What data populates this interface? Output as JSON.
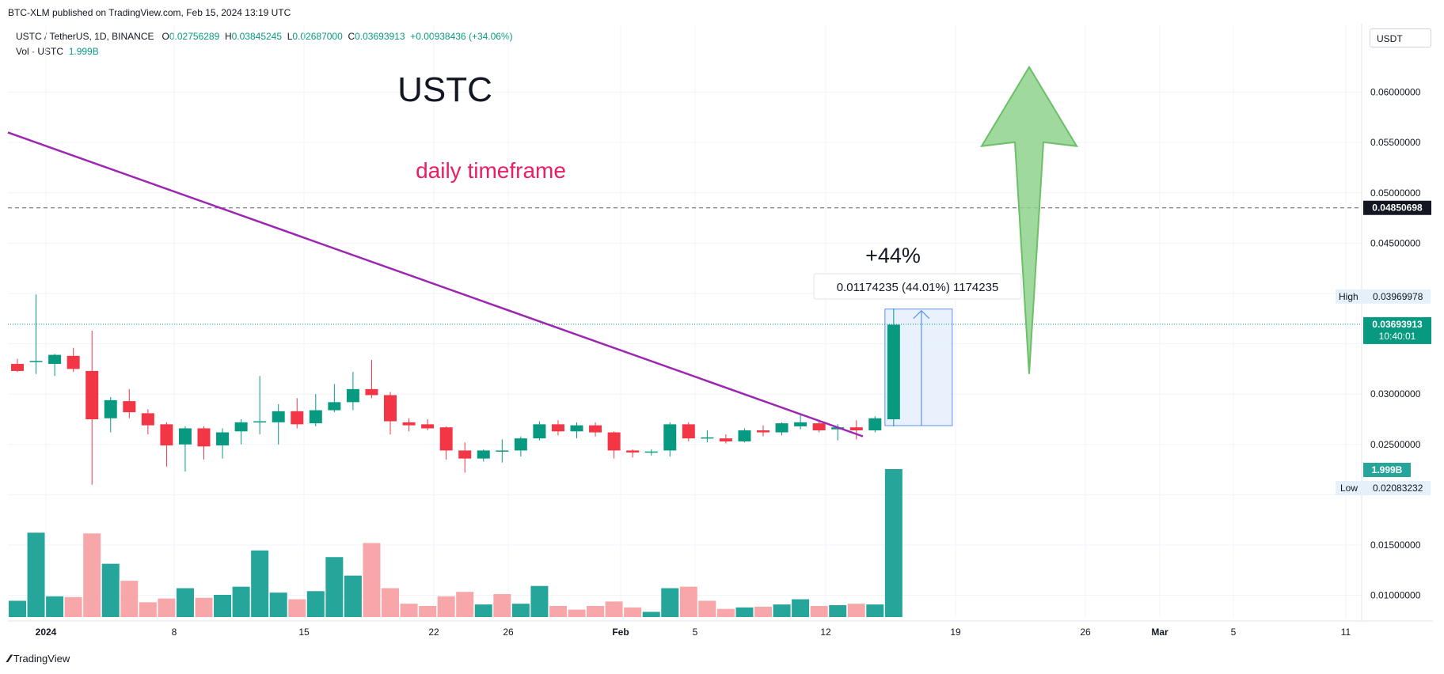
{
  "header": {
    "published_by": "BTC-XLM published on TradingView.com, Feb 15, 2024 13:19 UTC"
  },
  "legend": {
    "symbol": "USTC / TetherUS, 1D, BINANCE",
    "o_label": "O",
    "o_value": "0.02756289",
    "h_label": "H",
    "h_value": "0.03845245",
    "l_label": "L",
    "l_value": "0.02687000",
    "c_label": "C",
    "c_value": "0.03693913",
    "change": "+0.00938436 (+34.06%)",
    "vol_label": "Vol · USTC",
    "vol_value": "1.999B"
  },
  "currency": "USDT",
  "footer": {
    "logo_text": "TradingView"
  },
  "colors": {
    "up": "#089981",
    "down": "#f23645",
    "vol_up": "#26a69a",
    "vol_down": "#f7a7a9",
    "trendline": "#9c27b0",
    "annotation_pink": "#e91e63",
    "arrow_fill": "#8fd28c",
    "arrow_stroke": "#6cbf68",
    "measure_fill": "#e3eefd",
    "measure_stroke": "#5b8ff9"
  },
  "chart_data": {
    "type": "candlestick",
    "x_ticks": [
      "2024",
      "8",
      "15",
      "22",
      "26",
      "Feb",
      "5",
      "12",
      "19",
      "26",
      "Mar",
      "5",
      "11"
    ],
    "y_ticks": [
      "0.06000000",
      "0.05500000",
      "0.05000000",
      "0.04500000",
      "0.03000000",
      "0.02500000",
      "0.01500000",
      "0.01000000"
    ],
    "y_range": [
      0.0095,
      0.0635
    ],
    "candles": [
      {
        "o": 0.033,
        "h": 0.0335,
        "l": 0.0322,
        "c": 0.0323
      },
      {
        "o": 0.0332,
        "h": 0.0399,
        "l": 0.032,
        "c": 0.0333
      },
      {
        "o": 0.033,
        "h": 0.034,
        "l": 0.0318,
        "c": 0.0339
      },
      {
        "o": 0.0338,
        "h": 0.0346,
        "l": 0.0322,
        "c": 0.0325
      },
      {
        "o": 0.0323,
        "h": 0.0363,
        "l": 0.021,
        "c": 0.0275
      },
      {
        "o": 0.0276,
        "h": 0.0297,
        "l": 0.0262,
        "c": 0.0294
      },
      {
        "o": 0.0293,
        "h": 0.0305,
        "l": 0.0276,
        "c": 0.0282
      },
      {
        "o": 0.0281,
        "h": 0.0285,
        "l": 0.026,
        "c": 0.0269
      },
      {
        "o": 0.027,
        "h": 0.0272,
        "l": 0.0228,
        "c": 0.0249
      },
      {
        "o": 0.025,
        "h": 0.0268,
        "l": 0.0223,
        "c": 0.0266
      },
      {
        "o": 0.0266,
        "h": 0.0268,
        "l": 0.0235,
        "c": 0.0248
      },
      {
        "o": 0.0249,
        "h": 0.0266,
        "l": 0.0236,
        "c": 0.0262
      },
      {
        "o": 0.0263,
        "h": 0.0275,
        "l": 0.025,
        "c": 0.0272
      },
      {
        "o": 0.0272,
        "h": 0.0318,
        "l": 0.026,
        "c": 0.0273
      },
      {
        "o": 0.0272,
        "h": 0.029,
        "l": 0.025,
        "c": 0.0283
      },
      {
        "o": 0.0283,
        "h": 0.0296,
        "l": 0.0266,
        "c": 0.027
      },
      {
        "o": 0.0271,
        "h": 0.03,
        "l": 0.0268,
        "c": 0.0284
      },
      {
        "o": 0.0284,
        "h": 0.031,
        "l": 0.0282,
        "c": 0.0292
      },
      {
        "o": 0.0292,
        "h": 0.0322,
        "l": 0.0284,
        "c": 0.0305
      },
      {
        "o": 0.0305,
        "h": 0.0334,
        "l": 0.0296,
        "c": 0.0299
      },
      {
        "o": 0.0299,
        "h": 0.0302,
        "l": 0.026,
        "c": 0.0273
      },
      {
        "o": 0.0272,
        "h": 0.0276,
        "l": 0.0263,
        "c": 0.0269
      },
      {
        "o": 0.027,
        "h": 0.0275,
        "l": 0.0264,
        "c": 0.0266
      },
      {
        "o": 0.0267,
        "h": 0.0268,
        "l": 0.0235,
        "c": 0.0244
      },
      {
        "o": 0.0244,
        "h": 0.0252,
        "l": 0.0222,
        "c": 0.0236
      },
      {
        "o": 0.0236,
        "h": 0.0245,
        "l": 0.0233,
        "c": 0.0244
      },
      {
        "o": 0.0243,
        "h": 0.0255,
        "l": 0.0232,
        "c": 0.0244
      },
      {
        "o": 0.0244,
        "h": 0.0258,
        "l": 0.0238,
        "c": 0.0256
      },
      {
        "o": 0.0256,
        "h": 0.0273,
        "l": 0.0254,
        "c": 0.027
      },
      {
        "o": 0.027,
        "h": 0.0274,
        "l": 0.0259,
        "c": 0.0263
      },
      {
        "o": 0.0263,
        "h": 0.0272,
        "l": 0.0256,
        "c": 0.0269
      },
      {
        "o": 0.0269,
        "h": 0.0272,
        "l": 0.0258,
        "c": 0.0262
      },
      {
        "o": 0.0262,
        "h": 0.0263,
        "l": 0.0236,
        "c": 0.0244
      },
      {
        "o": 0.0244,
        "h": 0.0245,
        "l": 0.0237,
        "c": 0.0242
      },
      {
        "o": 0.0242,
        "h": 0.0245,
        "l": 0.0239,
        "c": 0.0243
      },
      {
        "o": 0.0244,
        "h": 0.0272,
        "l": 0.0238,
        "c": 0.027
      },
      {
        "o": 0.027,
        "h": 0.0272,
        "l": 0.0253,
        "c": 0.0256
      },
      {
        "o": 0.0256,
        "h": 0.0264,
        "l": 0.0252,
        "c": 0.0257
      },
      {
        "o": 0.0256,
        "h": 0.026,
        "l": 0.0251,
        "c": 0.0253
      },
      {
        "o": 0.0253,
        "h": 0.0266,
        "l": 0.0252,
        "c": 0.0264
      },
      {
        "o": 0.0264,
        "h": 0.0269,
        "l": 0.0258,
        "c": 0.0262
      },
      {
        "o": 0.0262,
        "h": 0.0272,
        "l": 0.0259,
        "c": 0.0271
      },
      {
        "o": 0.0268,
        "h": 0.028,
        "l": 0.0265,
        "c": 0.0272
      },
      {
        "o": 0.0271,
        "h": 0.0274,
        "l": 0.0262,
        "c": 0.0264
      },
      {
        "o": 0.0265,
        "h": 0.027,
        "l": 0.0254,
        "c": 0.0267
      },
      {
        "o": 0.0267,
        "h": 0.0274,
        "l": 0.0255,
        "c": 0.0264
      },
      {
        "o": 0.0264,
        "h": 0.0278,
        "l": 0.0262,
        "c": 0.0276
      },
      {
        "o": 0.0275,
        "h": 0.0385,
        "l": 0.0268,
        "c": 0.0369
      }
    ],
    "volume_bars": [
      {
        "v": 0.22,
        "up": true
      },
      {
        "v": 1.14,
        "up": true
      },
      {
        "v": 0.28,
        "up": true
      },
      {
        "v": 0.27,
        "up": false
      },
      {
        "v": 1.13,
        "up": false
      },
      {
        "v": 0.72,
        "up": true
      },
      {
        "v": 0.49,
        "up": false
      },
      {
        "v": 0.2,
        "up": false
      },
      {
        "v": 0.25,
        "up": false
      },
      {
        "v": 0.39,
        "up": true
      },
      {
        "v": 0.26,
        "up": false
      },
      {
        "v": 0.3,
        "up": true
      },
      {
        "v": 0.41,
        "up": true
      },
      {
        "v": 0.9,
        "up": true
      },
      {
        "v": 0.33,
        "up": true
      },
      {
        "v": 0.24,
        "up": false
      },
      {
        "v": 0.35,
        "up": true
      },
      {
        "v": 0.81,
        "up": true
      },
      {
        "v": 0.56,
        "up": true
      },
      {
        "v": 1.0,
        "up": false
      },
      {
        "v": 0.39,
        "up": false
      },
      {
        "v": 0.18,
        "up": false
      },
      {
        "v": 0.15,
        "up": false
      },
      {
        "v": 0.28,
        "up": false
      },
      {
        "v": 0.34,
        "up": false
      },
      {
        "v": 0.17,
        "up": true
      },
      {
        "v": 0.31,
        "up": false
      },
      {
        "v": 0.18,
        "up": true
      },
      {
        "v": 0.42,
        "up": true
      },
      {
        "v": 0.15,
        "up": false
      },
      {
        "v": 0.1,
        "up": false
      },
      {
        "v": 0.15,
        "up": false
      },
      {
        "v": 0.21,
        "up": false
      },
      {
        "v": 0.13,
        "up": false
      },
      {
        "v": 0.07,
        "up": true
      },
      {
        "v": 0.39,
        "up": true
      },
      {
        "v": 0.41,
        "up": false
      },
      {
        "v": 0.22,
        "up": false
      },
      {
        "v": 0.11,
        "up": false
      },
      {
        "v": 0.13,
        "up": true
      },
      {
        "v": 0.14,
        "up": false
      },
      {
        "v": 0.17,
        "up": true
      },
      {
        "v": 0.24,
        "up": true
      },
      {
        "v": 0.15,
        "up": false
      },
      {
        "v": 0.16,
        "up": true
      },
      {
        "v": 0.18,
        "up": false
      },
      {
        "v": 0.17,
        "up": true
      },
      {
        "v": 1.999,
        "up": true
      }
    ],
    "trendline": {
      "start": 0.056,
      "end": 0.0258
    },
    "dashed_level": 0.04850698,
    "current_price_label": "0.03693913",
    "countdown_label": "10:40:01",
    "level_label": "0.04850698",
    "volume_label": "1.999B",
    "high_label": "High",
    "high_value": "0.03969978",
    "low_label": "Low",
    "low_value": "0.02083232",
    "measure_label": "0.01174235 (44.01%) 1174235",
    "measure_range": [
      0.02687,
      0.03845
    ],
    "annotations": {
      "title": "USTC",
      "subtitle": "daily timeframe",
      "gain": "+44%"
    },
    "target_arrow": {
      "tip": 0.0625,
      "base": 0.032
    }
  }
}
